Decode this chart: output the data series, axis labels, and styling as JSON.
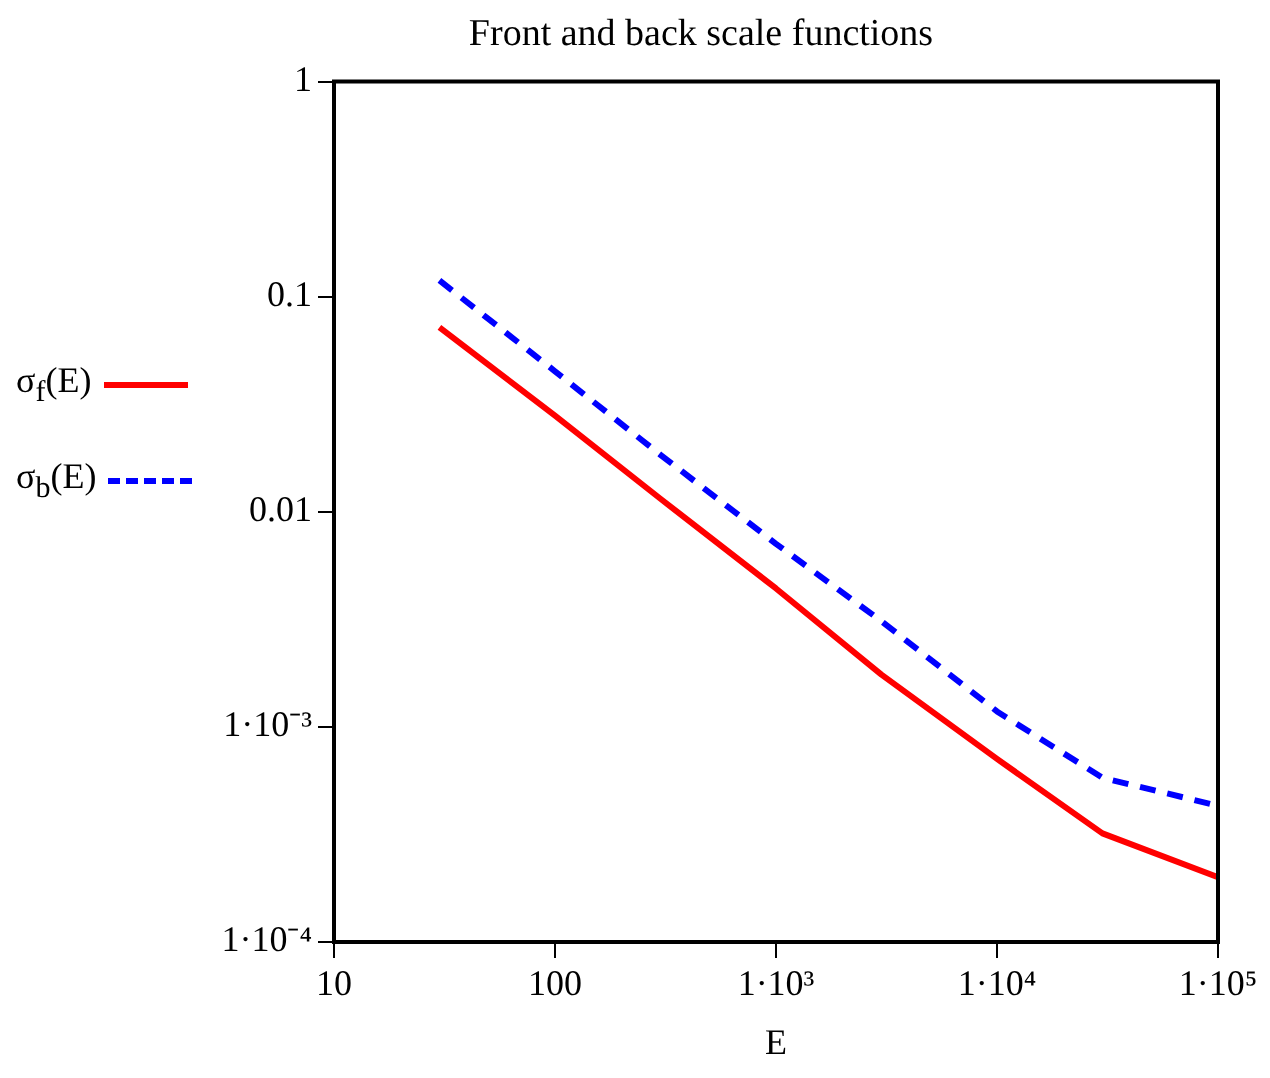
{
  "chart_data": {
    "type": "line",
    "title": "Front and back scale functions",
    "xlabel": "E",
    "log": "xy",
    "grid": false,
    "legend": "left",
    "marker": "none",
    "x": [
      30,
      100,
      300,
      1000,
      3000,
      10000,
      30000,
      100000
    ],
    "xlim": [
      10,
      100000
    ],
    "xticks": [
      10,
      100,
      {
        "value": 1000,
        "label": "1·10³"
      },
      {
        "value": 10000,
        "label": "1·10⁴"
      },
      {
        "value": 100000,
        "label": "1·10⁵"
      }
    ],
    "ylim": [
      0.0001,
      1
    ],
    "yticks": [
      {
        "value": 0.0001,
        "label": "1·10⁻⁴"
      },
      {
        "value": 0.001,
        "label": "1·10⁻³"
      },
      0.01,
      0.1,
      1
    ],
    "series": [
      {
        "name": "σ$_{f}$(E)",
        "color": "#ff0000",
        "line_style": "solid",
        "values": [
          0.072,
          0.028,
          0.0115,
          0.0044,
          0.00175,
          0.00071,
          0.00032,
          0.0002
        ]
      },
      {
        "name": "σ$_{b}$(E)",
        "color": "#0000ff",
        "line_style": "dashed",
        "values": [
          0.119,
          0.045,
          0.0184,
          0.0071,
          0.0031,
          0.00118,
          0.00058,
          0.00043
        ]
      }
    ]
  }
}
